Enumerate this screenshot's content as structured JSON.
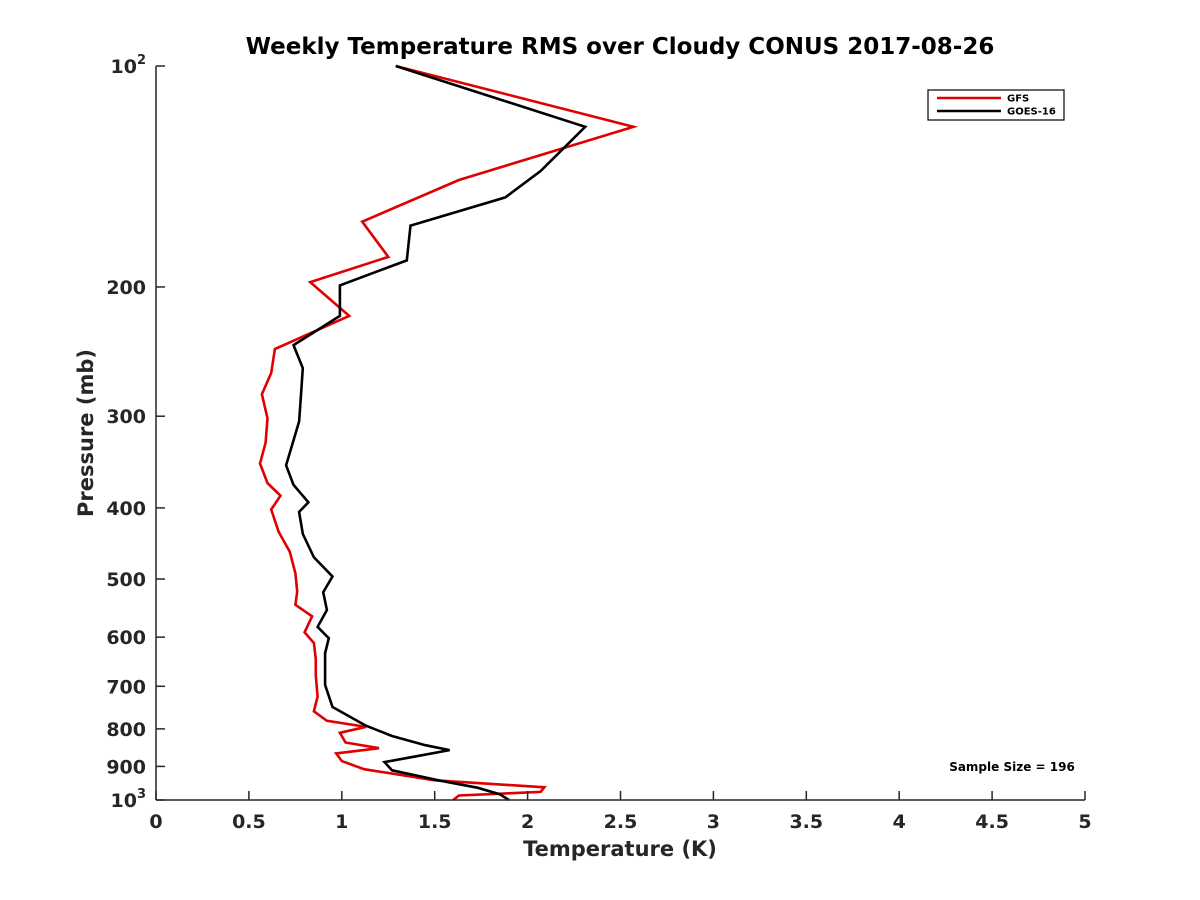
{
  "chart_data": {
    "type": "line",
    "title": "Weekly Temperature RMS over Cloudy CONUS 2017-08-26",
    "xlabel": "Temperature (K)",
    "ylabel": "Pressure (mb)",
    "xlim": [
      0,
      5
    ],
    "ylim": [
      100,
      1000
    ],
    "y_scale": "log",
    "y_reversed": false,
    "grid": false,
    "x_ticks": [
      0,
      0.5,
      1,
      1.5,
      2,
      2.5,
      3,
      3.5,
      4,
      4.5,
      5
    ],
    "x_tick_labels": [
      "0",
      "0.5",
      "1",
      "1.5",
      "2",
      "2.5",
      "3",
      "3.5",
      "4",
      "4.5",
      "5"
    ],
    "y_ticks": [
      100,
      200,
      300,
      400,
      500,
      600,
      700,
      800,
      900,
      1000
    ],
    "y_tick_labels": [
      {
        "base": "10",
        "exp": "2"
      },
      {
        "base": "200",
        "exp": ""
      },
      {
        "base": "300",
        "exp": ""
      },
      {
        "base": "400",
        "exp": ""
      },
      {
        "base": "500",
        "exp": ""
      },
      {
        "base": "600",
        "exp": ""
      },
      {
        "base": "700",
        "exp": ""
      },
      {
        "base": "800",
        "exp": ""
      },
      {
        "base": "900",
        "exp": ""
      },
      {
        "base": "10",
        "exp": "3"
      }
    ],
    "legend_position": "top-right",
    "annotation": "Sample Size = 196",
    "series": [
      {
        "name": "GFS",
        "color": "#e00000",
        "points": [
          [
            1.29,
            100
          ],
          [
            2.57,
            121
          ],
          [
            1.63,
            143
          ],
          [
            1.11,
            163
          ],
          [
            1.25,
            182
          ],
          [
            0.83,
            197
          ],
          [
            1.04,
            219
          ],
          [
            0.64,
            243
          ],
          [
            0.62,
            262
          ],
          [
            0.57,
            280
          ],
          [
            0.6,
            302
          ],
          [
            0.59,
            326
          ],
          [
            0.56,
            348
          ],
          [
            0.6,
            370
          ],
          [
            0.67,
            385
          ],
          [
            0.62,
            402
          ],
          [
            0.66,
            431
          ],
          [
            0.72,
            459
          ],
          [
            0.75,
            491
          ],
          [
            0.76,
            520
          ],
          [
            0.75,
            542
          ],
          [
            0.84,
            562
          ],
          [
            0.8,
            591
          ],
          [
            0.85,
            611
          ],
          [
            0.86,
            643
          ],
          [
            0.86,
            677
          ],
          [
            0.87,
            723
          ],
          [
            0.85,
            757
          ],
          [
            0.92,
            780
          ],
          [
            1.13,
            795
          ],
          [
            0.99,
            810
          ],
          [
            1.02,
            835
          ],
          [
            1.2,
            850
          ],
          [
            0.97,
            864
          ],
          [
            1.0,
            885
          ],
          [
            1.12,
            908
          ],
          [
            1.5,
            940
          ],
          [
            2.09,
            961
          ],
          [
            2.07,
            975
          ],
          [
            1.63,
            986
          ],
          [
            1.6,
            1000
          ]
        ]
      },
      {
        "name": "GOES-16",
        "color": "#000000",
        "points": [
          [
            1.29,
            100
          ],
          [
            2.31,
            121
          ],
          [
            2.07,
            139
          ],
          [
            1.88,
            151
          ],
          [
            1.37,
            165
          ],
          [
            1.35,
            184
          ],
          [
            0.99,
            199
          ],
          [
            0.99,
            219
          ],
          [
            0.74,
            240
          ],
          [
            0.79,
            258
          ],
          [
            0.78,
            282
          ],
          [
            0.77,
            305
          ],
          [
            0.7,
            350
          ],
          [
            0.74,
            372
          ],
          [
            0.82,
            393
          ],
          [
            0.77,
            405
          ],
          [
            0.79,
            434
          ],
          [
            0.85,
            467
          ],
          [
            0.95,
            496
          ],
          [
            0.9,
            521
          ],
          [
            0.92,
            551
          ],
          [
            0.87,
            581
          ],
          [
            0.93,
            602
          ],
          [
            0.91,
            631
          ],
          [
            0.91,
            664
          ],
          [
            0.91,
            697
          ],
          [
            0.95,
            747
          ],
          [
            1.13,
            792
          ],
          [
            1.27,
            818
          ],
          [
            1.45,
            842
          ],
          [
            1.58,
            855
          ],
          [
            1.4,
            872
          ],
          [
            1.23,
            888
          ],
          [
            1.27,
            911
          ],
          [
            1.52,
            940
          ],
          [
            1.73,
            962
          ],
          [
            1.85,
            982
          ],
          [
            1.9,
            1000
          ]
        ]
      }
    ]
  }
}
